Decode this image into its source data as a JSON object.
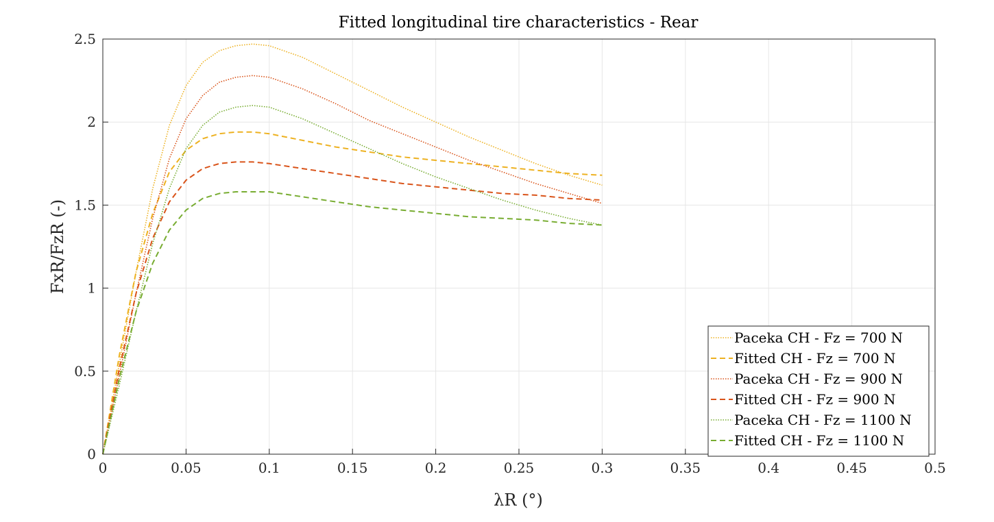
{
  "chart_data": {
    "type": "line",
    "title": "Fitted longitudinal tire characteristics - Rear",
    "xlabel": "λR (°)",
    "ylabel": "FxR/FzR (-)",
    "xlim": [
      0,
      0.5
    ],
    "ylim": [
      0,
      2.5
    ],
    "xticks": [
      "0",
      "0.05",
      "0.1",
      "0.15",
      "0.2",
      "0.25",
      "0.3",
      "0.35",
      "0.4",
      "0.45",
      "0.5"
    ],
    "yticks": [
      "0",
      "0.5",
      "1",
      "1.5",
      "2",
      "2.5"
    ],
    "grid": true,
    "legend_position": "bottom-right",
    "series": [
      {
        "name": "Paceka CH - Fz = 700 N",
        "color": "#EDB120",
        "style": "dotted",
        "x": [
          0,
          0.01,
          0.02,
          0.03,
          0.04,
          0.05,
          0.06,
          0.07,
          0.08,
          0.09,
          0.1,
          0.12,
          0.14,
          0.16,
          0.18,
          0.2,
          0.22,
          0.24,
          0.26,
          0.28,
          0.3
        ],
        "y": [
          0,
          0.55,
          1.1,
          1.6,
          1.98,
          2.22,
          2.36,
          2.43,
          2.46,
          2.47,
          2.46,
          2.39,
          2.29,
          2.19,
          2.09,
          2.0,
          1.91,
          1.83,
          1.75,
          1.68,
          1.62
        ]
      },
      {
        "name": "Fitted CH - Fz = 700 N",
        "color": "#EDB120",
        "style": "dashed",
        "x": [
          0,
          0.01,
          0.02,
          0.03,
          0.04,
          0.05,
          0.06,
          0.07,
          0.08,
          0.09,
          0.1,
          0.12,
          0.14,
          0.16,
          0.18,
          0.2,
          0.22,
          0.24,
          0.26,
          0.28,
          0.3
        ],
        "y": [
          0,
          0.6,
          1.1,
          1.45,
          1.7,
          1.83,
          1.9,
          1.93,
          1.94,
          1.94,
          1.93,
          1.89,
          1.85,
          1.82,
          1.79,
          1.77,
          1.75,
          1.73,
          1.71,
          1.69,
          1.68
        ]
      },
      {
        "name": "Paceka CH - Fz = 900 N",
        "color": "#D95319",
        "style": "dotted",
        "x": [
          0,
          0.01,
          0.02,
          0.03,
          0.04,
          0.05,
          0.06,
          0.07,
          0.08,
          0.09,
          0.1,
          0.12,
          0.14,
          0.16,
          0.18,
          0.2,
          0.22,
          0.24,
          0.26,
          0.28,
          0.3
        ],
        "y": [
          0,
          0.48,
          0.97,
          1.42,
          1.78,
          2.02,
          2.16,
          2.24,
          2.27,
          2.28,
          2.27,
          2.2,
          2.11,
          2.01,
          1.93,
          1.85,
          1.77,
          1.7,
          1.63,
          1.57,
          1.51
        ]
      },
      {
        "name": "Fitted CH - Fz = 900 N",
        "color": "#D95319",
        "style": "dashed",
        "x": [
          0,
          0.01,
          0.02,
          0.03,
          0.04,
          0.05,
          0.06,
          0.07,
          0.08,
          0.09,
          0.1,
          0.12,
          0.14,
          0.16,
          0.18,
          0.2,
          0.22,
          0.24,
          0.26,
          0.28,
          0.3
        ],
        "y": [
          0,
          0.52,
          0.97,
          1.3,
          1.52,
          1.65,
          1.72,
          1.75,
          1.76,
          1.76,
          1.75,
          1.72,
          1.69,
          1.66,
          1.63,
          1.61,
          1.59,
          1.57,
          1.56,
          1.54,
          1.53
        ]
      },
      {
        "name": "Paceka CH - Fz = 1100 N",
        "color": "#77AC30",
        "style": "dotted",
        "x": [
          0,
          0.01,
          0.02,
          0.03,
          0.04,
          0.05,
          0.06,
          0.07,
          0.08,
          0.09,
          0.1,
          0.12,
          0.14,
          0.16,
          0.18,
          0.2,
          0.22,
          0.24,
          0.26,
          0.28,
          0.3
        ],
        "y": [
          0,
          0.42,
          0.86,
          1.27,
          1.6,
          1.84,
          1.98,
          2.06,
          2.09,
          2.1,
          2.09,
          2.02,
          1.93,
          1.84,
          1.75,
          1.67,
          1.6,
          1.53,
          1.47,
          1.42,
          1.38
        ]
      },
      {
        "name": "Fitted CH - Fz = 1100 N",
        "color": "#77AC30",
        "style": "dashed",
        "x": [
          0,
          0.01,
          0.02,
          0.03,
          0.04,
          0.05,
          0.06,
          0.07,
          0.08,
          0.09,
          0.1,
          0.12,
          0.14,
          0.16,
          0.18,
          0.2,
          0.22,
          0.24,
          0.26,
          0.28,
          0.3
        ],
        "y": [
          0,
          0.46,
          0.86,
          1.15,
          1.35,
          1.47,
          1.54,
          1.57,
          1.58,
          1.58,
          1.58,
          1.55,
          1.52,
          1.49,
          1.47,
          1.45,
          1.43,
          1.42,
          1.41,
          1.39,
          1.38
        ]
      }
    ]
  }
}
